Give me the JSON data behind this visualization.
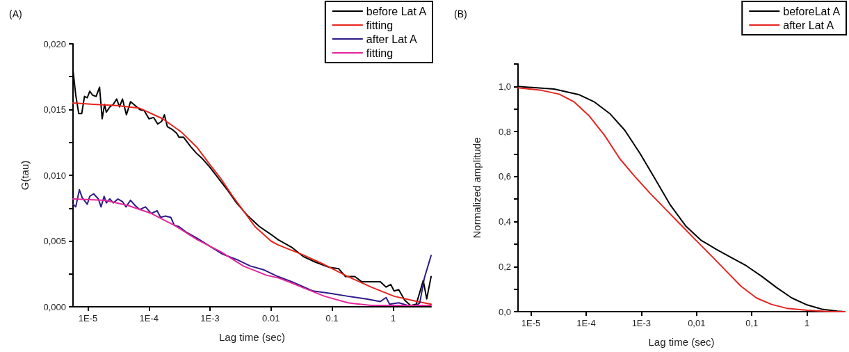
{
  "chart_data": [
    {
      "type": "line",
      "title": "(A)",
      "xlabel": "Lag time (sec)",
      "ylabel": "G(tau)",
      "log": "x",
      "marker": "none",
      "legend": "top right",
      "xlim": [
        5.69e-06,
        4.2
      ],
      "xticks": [
        {
          "value": 1e-05,
          "label": "1E-5"
        },
        {
          "value": 0.0001,
          "label": "1E-4"
        },
        {
          "value": 0.001,
          "label": "1E-3"
        },
        {
          "value": 0.01,
          "label": "0.01"
        },
        {
          "value": 0.1,
          "label": "0.1"
        },
        {
          "value": 1,
          "label": "1"
        }
      ],
      "ylim": [
        0,
        0.02
      ],
      "yticks": [
        {
          "value": 0,
          "label": "0,000"
        },
        {
          "value": 0.0025,
          "label": null
        },
        {
          "value": 0.005,
          "label": "0,005"
        },
        {
          "value": 0.0075,
          "label": null
        },
        {
          "value": 0.01,
          "label": "0,010"
        },
        {
          "value": 0.0125,
          "label": null
        },
        {
          "value": 0.015,
          "label": "0,015"
        },
        {
          "value": 0.0175,
          "label": null
        },
        {
          "value": 0.02,
          "label": "0,020"
        }
      ],
      "series": [
        {
          "name": "before Lat A",
          "color": "#000000",
          "x": [
            5.69e-06,
            6.31e-06,
            7.06e-06,
            7.91e-06,
            8.77e-06,
            9.75e-06,
            1.07e-05,
            1.19e-05,
            1.36e-05,
            1.55e-05,
            1.71e-05,
            1.87e-05,
            2e-05,
            2.28e-05,
            2.6e-05,
            2.96e-05,
            3.29e-05,
            3.68e-05,
            4.27e-05,
            4.99e-05,
            5.94e-05,
            7.06e-05,
            8.41e-05,
            0.0001,
            0.000119,
            0.000139,
            0.000161,
            0.000179,
            0.0002,
            0.000238,
            0.000284,
            0.00031,
            0.000368,
            0.000478,
            0.000594,
            0.000738,
            0.001,
            0.00136,
            0.00192,
            0.00272,
            0.0042,
            0.00647,
            0.01,
            0.0131,
            0.0222,
            0.0344,
            0.0532,
            0.09,
            0.128,
            0.166,
            0.236,
            0.307,
            0.436,
            0.618,
            0.769,
            0.916,
            1.04,
            1.24,
            1.55,
            1.93,
            2.4,
            3.12,
            3.56,
            4.2
          ],
          "values": [
            0.018,
            0.0161,
            0.0147,
            0.0147,
            0.016,
            0.0159,
            0.0164,
            0.0161,
            0.016,
            0.0167,
            0.0143,
            0.0154,
            0.0148,
            0.0152,
            0.0154,
            0.0158,
            0.0152,
            0.0158,
            0.0146,
            0.0156,
            0.0153,
            0.015,
            0.0149,
            0.0143,
            0.0144,
            0.0139,
            0.0141,
            0.0146,
            0.0137,
            0.0135,
            0.0132,
            0.0129,
            0.0129,
            0.0122,
            0.0117,
            0.0113,
            0.0106,
            0.0098,
            0.0089,
            0.0079,
            0.0069,
            0.0061,
            0.0055,
            0.0051,
            0.0045,
            0.0038,
            0.0034,
            0.003,
            0.0029,
            0.0023,
            0.0023,
            0.0019,
            0.0019,
            0.0019,
            0.0015,
            0.0017,
            0.0012,
            0.0013,
            0.0005,
            0.0001,
            0.0002,
            0.002,
            0.0006,
            0.0023
          ]
        },
        {
          "name": "fitting",
          "color": "#e8231c",
          "x": [
            5.69e-06,
            1.24e-05,
            2.96e-05,
            7.06e-05,
            0.000168,
            0.000337,
            0.000619,
            0.001,
            0.00148,
            0.00228,
            0.00352,
            0.00545,
            0.01,
            0.0131,
            0.0315,
            0.0755,
            0.182,
            0.436,
            1.04,
            2.51,
            4.2
          ],
          "values": [
            0.0155,
            0.0154,
            0.0153,
            0.0151,
            0.0143,
            0.0133,
            0.0121,
            0.0108,
            0.0098,
            0.0085,
            0.0073,
            0.0061,
            0.005,
            0.0047,
            0.004,
            0.0032,
            0.0023,
            0.0015,
            0.0008,
            0.0004,
            0.0002
          ]
        },
        {
          "name": "after Lat A",
          "color": "#2e1a87",
          "x": [
            5.69e-06,
            6.31e-06,
            7.24e-06,
            8.05e-06,
            9.75e-06,
            1.07e-05,
            1.24e-05,
            1.48e-05,
            1.64e-05,
            1.84e-05,
            2e-05,
            2.28e-05,
            2.6e-05,
            3.1e-05,
            3.68e-05,
            4.2e-05,
            4.99e-05,
            5.94e-05,
            7.06e-05,
            8.77e-05,
            0.000109,
            0.000136,
            0.000155,
            0.000184,
            0.000228,
            0.00026,
            0.00031,
            0.000402,
            0.000619,
            0.001,
            0.00161,
            0.00272,
            0.00457,
            0.00771,
            0.013,
            0.0222,
            0.0488,
            0.0982,
            0.182,
            0.366,
            0.618,
            0.769,
            0.877,
            1.24,
            1.77,
            2.4,
            2.74,
            3.26,
            4.2
          ],
          "values": [
            0.0078,
            0.0076,
            0.0089,
            0.0083,
            0.0078,
            0.0084,
            0.0086,
            0.0082,
            0.0076,
            0.0084,
            0.0079,
            0.0082,
            0.0079,
            0.0082,
            0.008,
            0.0076,
            0.0081,
            0.0077,
            0.0074,
            0.0076,
            0.0071,
            0.0073,
            0.0068,
            0.0069,
            0.0068,
            0.0062,
            0.0061,
            0.0057,
            0.0052,
            0.0046,
            0.004,
            0.0036,
            0.0031,
            0.0028,
            0.0023,
            0.0019,
            0.0012,
            0.001,
            0.0008,
            0.0006,
            0.0004,
            0.0007,
            0.0002,
            0.0003,
            0.0001,
            0.0001,
            0.0003,
            0.0022,
            0.0039
          ]
        },
        {
          "name": "fitting",
          "color": "#e6259a",
          "x": [
            5.69e-06,
            1.92e-05,
            4.57e-05,
            0.000109,
            0.00026,
            0.000619,
            0.00148,
            0.00352,
            0.00841,
            0.0131,
            0.0222,
            0.0315,
            0.0755,
            0.182,
            0.436,
            4.2
          ],
          "values": [
            0.0082,
            0.0081,
            0.0077,
            0.0071,
            0.0062,
            0.0051,
            0.0042,
            0.0031,
            0.0024,
            0.0022,
            0.0018,
            0.0015,
            0.0008,
            0.0003,
            0.0001,
            0.0001
          ]
        }
      ]
    },
    {
      "type": "line",
      "title": "(B)",
      "xlabel": "Lag time (sec)",
      "ylabel": "Normalized amplitude",
      "log": "x",
      "marker": "none",
      "legend": "top right",
      "xlim": [
        5.85e-06,
        4.83
      ],
      "xticks": [
        {
          "value": 1e-05,
          "label": "1E-5"
        },
        {
          "value": 0.0001,
          "label": "1E-4"
        },
        {
          "value": 0.001,
          "label": "1E-3"
        },
        {
          "value": 0.01,
          "label": "0,01"
        },
        {
          "value": 0.1,
          "label": "0,1"
        },
        {
          "value": 1,
          "label": "1"
        }
      ],
      "ylim": [
        0,
        1.1
      ],
      "yticks": [
        {
          "value": 0,
          "label": "0,0"
        },
        {
          "value": 0.1,
          "label": null
        },
        {
          "value": 0.2,
          "label": "0,2"
        },
        {
          "value": 0.3,
          "label": null
        },
        {
          "value": 0.4,
          "label": "0,4"
        },
        {
          "value": 0.5,
          "label": null
        },
        {
          "value": 0.6,
          "label": "0,6"
        },
        {
          "value": 0.7,
          "label": null
        },
        {
          "value": 0.8,
          "label": "0,8"
        },
        {
          "value": 0.9,
          "label": null
        },
        {
          "value": 1,
          "label": "1,0"
        },
        {
          "value": 1.1,
          "label": null
        }
      ],
      "series": [
        {
          "name": "beforeLat A",
          "color": "#000000",
          "x": [
            5.85e-06,
            2.64e-05,
            7.57e-05,
            0.000142,
            0.000268,
            0.000504,
            0.000949,
            0.00179,
            0.00336,
            0.00633,
            0.0119,
            0.0224,
            0.0422,
            0.0793,
            0.149,
            0.281,
            0.528,
            1,
            1.87,
            3.52,
            4.83
          ],
          "values": [
            1.0,
            0.989,
            0.963,
            0.931,
            0.88,
            0.805,
            0.702,
            0.588,
            0.473,
            0.381,
            0.318,
            0.278,
            0.241,
            0.204,
            0.158,
            0.107,
            0.061,
            0.03,
            0.011,
            0.002,
            0
          ]
        },
        {
          "name": "after Lat A",
          "color": "#e52420",
          "x": [
            5.85e-06,
            1.56e-05,
            3.26e-05,
            6.12e-05,
            0.000115,
            0.000217,
            0.000408,
            0.000769,
            0.00145,
            0.00272,
            0.00512,
            0.00964,
            0.0182,
            0.0341,
            0.0643,
            0.121,
            0.228,
            0.428,
            1,
            2.31,
            4.83
          ],
          "values": [
            0.994,
            0.983,
            0.966,
            0.931,
            0.868,
            0.782,
            0.679,
            0.599,
            0.525,
            0.456,
            0.387,
            0.318,
            0.25,
            0.181,
            0.112,
            0.061,
            0.032,
            0.015,
            0.006,
            0.001,
            0
          ]
        }
      ]
    }
  ]
}
